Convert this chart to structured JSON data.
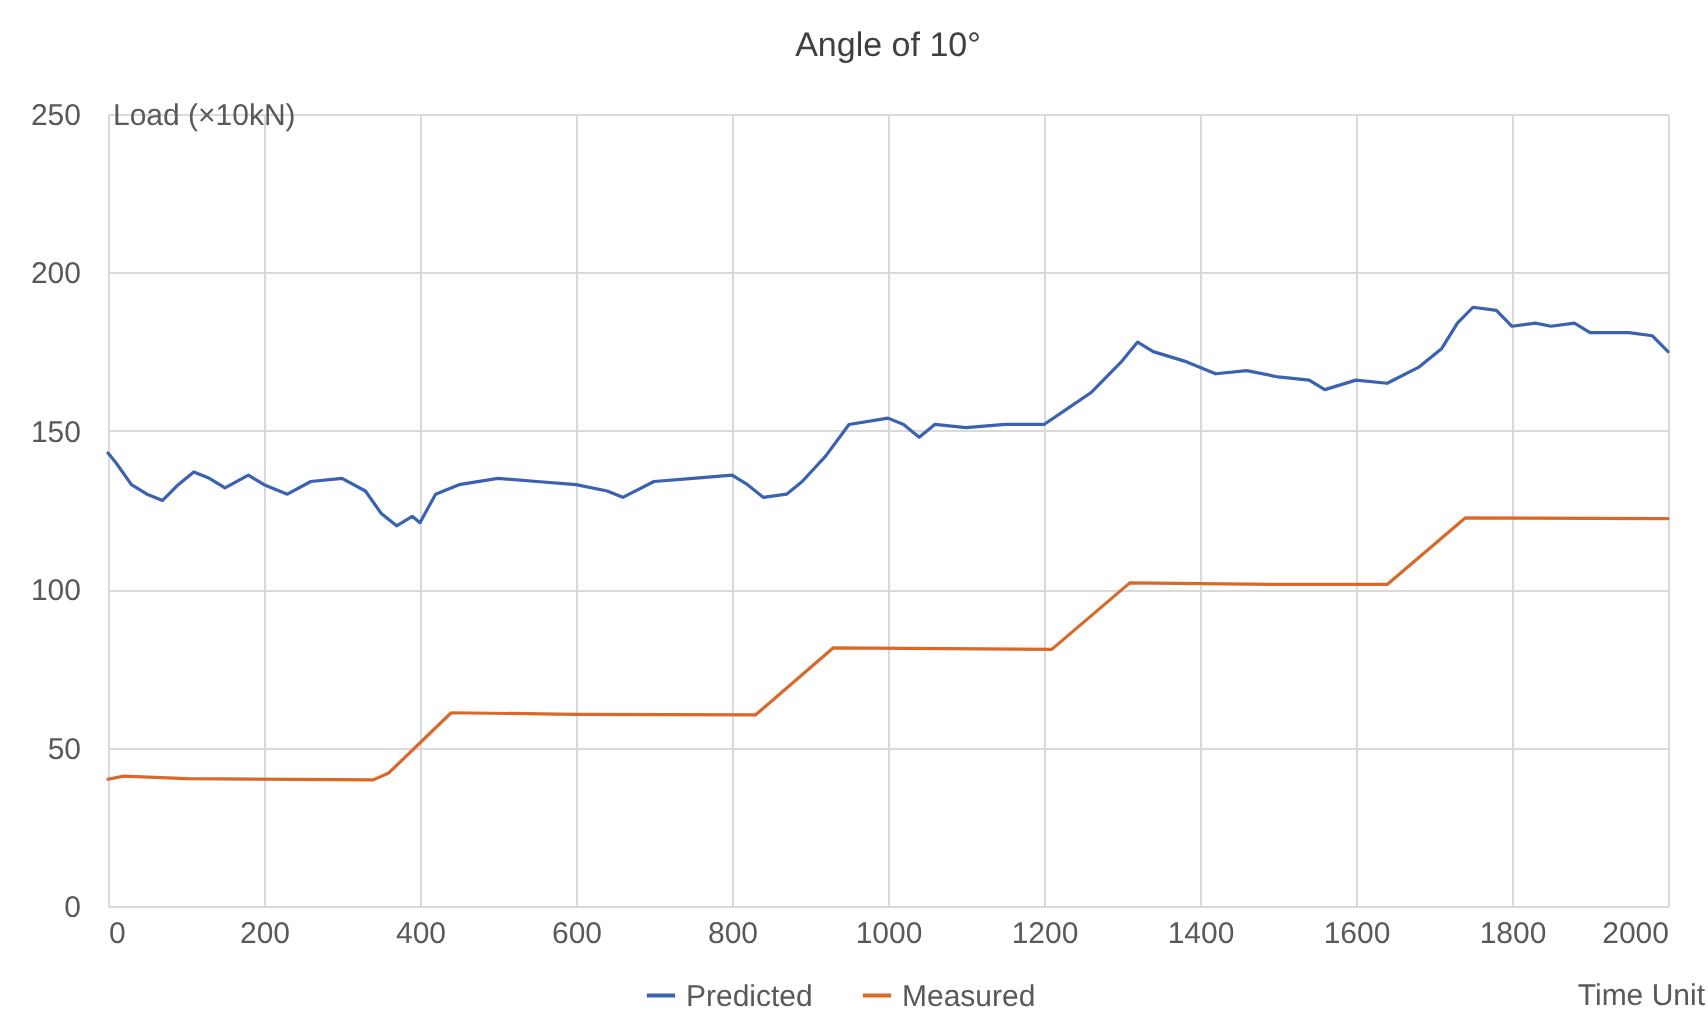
{
  "chart_data": {
    "type": "line",
    "title": "Angle of 10°",
    "xlabel": "Time Unit",
    "ylabel": "Load (×10kN)",
    "xlim": [
      0,
      2000
    ],
    "xticks": [
      0,
      200,
      400,
      600,
      800,
      1000,
      1200,
      1400,
      1600,
      1800,
      2000
    ],
    "ylim": [
      0,
      250
    ],
    "yticks": [
      0,
      50,
      100,
      150,
      200,
      250
    ],
    "grid": true,
    "legend": "bottom",
    "marker": "none",
    "line_style": "solid",
    "series": [
      {
        "name": "Predicted",
        "color": "#3a62b0",
        "x": [
          0,
          10,
          30,
          50,
          70,
          90,
          110,
          130,
          150,
          180,
          200,
          230,
          260,
          300,
          330,
          350,
          370,
          390,
          400,
          420,
          450,
          500,
          550,
          600,
          640,
          660,
          700,
          750,
          800,
          820,
          840,
          870,
          890,
          920,
          950,
          1000,
          1020,
          1040,
          1060,
          1100,
          1150,
          1200,
          1230,
          1260,
          1300,
          1320,
          1340,
          1380,
          1420,
          1460,
          1500,
          1540,
          1560,
          1600,
          1640,
          1680,
          1710,
          1730,
          1750,
          1780,
          1800,
          1830,
          1850,
          1880,
          1900,
          1950,
          1980,
          2000
        ],
        "values": [
          143,
          140,
          133,
          130,
          128,
          133,
          137,
          135,
          132,
          136,
          133,
          130,
          134,
          135,
          131,
          124,
          120,
          123,
          121,
          130,
          133,
          135,
          134,
          133,
          131,
          129,
          134,
          135,
          136,
          133,
          129,
          130,
          134,
          142,
          152,
          154,
          152,
          148,
          152,
          151,
          152,
          152,
          157,
          162,
          172,
          178,
          175,
          172,
          168,
          169,
          167,
          166,
          163,
          166,
          165,
          170,
          176,
          184,
          189,
          188,
          183,
          184,
          183,
          184,
          181,
          181,
          180,
          175
        ]
      },
      {
        "name": "Measured",
        "color": "#d9692a",
        "x": [
          0,
          20,
          100,
          340,
          360,
          440,
          600,
          830,
          930,
          1210,
          1310,
          1500,
          1640,
          1740,
          2000
        ],
        "values": [
          40,
          41,
          40.2,
          39.8,
          42,
          61,
          60.5,
          60.3,
          81.5,
          81,
          102,
          101.5,
          101.5,
          122.5,
          122.3
        ]
      }
    ]
  }
}
